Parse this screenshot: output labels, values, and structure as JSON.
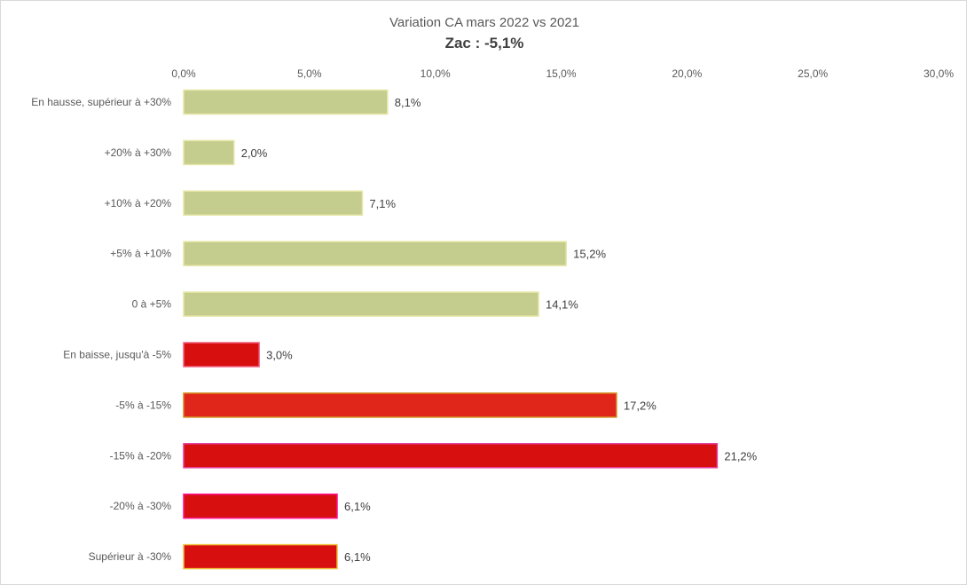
{
  "chart_data": {
    "type": "bar",
    "orientation": "horizontal",
    "title": "Variation CA mars 2022 vs 2021",
    "subtitle": "Zac : -5,1%",
    "xlabel": "",
    "ylabel": "",
    "xlim": [
      0,
      30
    ],
    "x_ticks": [
      0,
      5,
      10,
      15,
      20,
      25,
      30
    ],
    "x_tick_labels": [
      "0,0%",
      "5,0%",
      "10,0%",
      "15,0%",
      "20,0%",
      "25,0%",
      "30,0%"
    ],
    "x_axis_position": "top",
    "grid": false,
    "legend": "none",
    "categories": [
      "En hausse, supérieur à +30%",
      "+20% à +30%",
      "+10% à +20%",
      "+5% à +10%",
      "0 à +5%",
      "En baisse, jusqu'à -5%",
      "-5% à -15%",
      "-15% à -20%",
      "-20% à -30%",
      "Supérieur à -30%"
    ],
    "values": [
      8.1,
      2.0,
      7.1,
      15.2,
      14.1,
      3.0,
      17.2,
      21.2,
      6.1,
      6.1
    ],
    "value_labels": [
      "8,1%",
      "2,0%",
      "7,1%",
      "15,2%",
      "14,1%",
      "3,0%",
      "17,2%",
      "21,2%",
      "6,1%",
      "6,1%"
    ],
    "bar_colors": [
      "#c4cc8e",
      "#c4cc8e",
      "#c4cc8e",
      "#c4cc8e",
      "#c4cc8e",
      "#d70f0f",
      "#e0261b",
      "#d70f0f",
      "#d70f0f",
      "#d70f0f"
    ],
    "bar_outlines": [
      "#e6e6a6",
      "#e6e6a6",
      "#e6e6a6",
      "#e6e6a6",
      "#e6e6a6",
      "#f06080",
      "#d28a1e",
      "#e63c9e",
      "#ff1493",
      "#f0c040"
    ]
  }
}
